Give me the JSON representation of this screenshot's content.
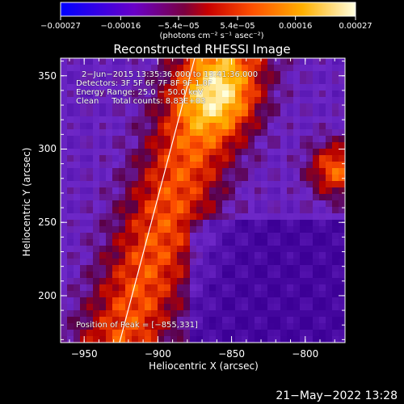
{
  "chart_data": {
    "type": "heatmap",
    "title": "Reconstructed RHESSI Image",
    "xlabel": "Heliocentric X (arcsec)",
    "ylabel": "Heliocentric Y (arcsec)",
    "xlim": [
      -966,
      -773
    ],
    "ylim": [
      168,
      362
    ],
    "x_ticks": [
      "−950",
      "−900",
      "−850",
      "−800"
    ],
    "x_tick_values": [
      -950,
      -900,
      -850,
      -800
    ],
    "y_ticks": [
      "350",
      "300",
      "250",
      "200"
    ],
    "y_tick_values": [
      350,
      300,
      250,
      200
    ],
    "colorbar": {
      "labels": [
        "−0.00027",
        "−0.00016",
        "−5.4e−05",
        "5.4e−05",
        "0.00016",
        "0.00027"
      ],
      "values": [
        -0.00027,
        -0.00016,
        -5.4e-05,
        5.4e-05,
        0.00016,
        0.00027
      ],
      "unit": "(photons cm⁻² s⁻¹ asec⁻²)"
    },
    "annotations": [
      "2−Jun−2015 13:35:36.000 to 13:41:36.000",
      "Detectors: 3F 5F 6F 7F 8F 9F 1.0F",
      "Energy Range: 25.0 − 50.0 keV",
      "Clean     Total counts: 8.83E+03"
    ],
    "peak_text": "Position of Peak = [−855,331]",
    "peak": [
      -855,
      331
    ],
    "limb_points": [
      [
        -926,
        168
      ],
      [
        -900,
        245
      ],
      [
        -875,
        362
      ]
    ],
    "colormap": "red-temperature"
  },
  "footer": {
    "date": "21−May−2022 13:28"
  }
}
